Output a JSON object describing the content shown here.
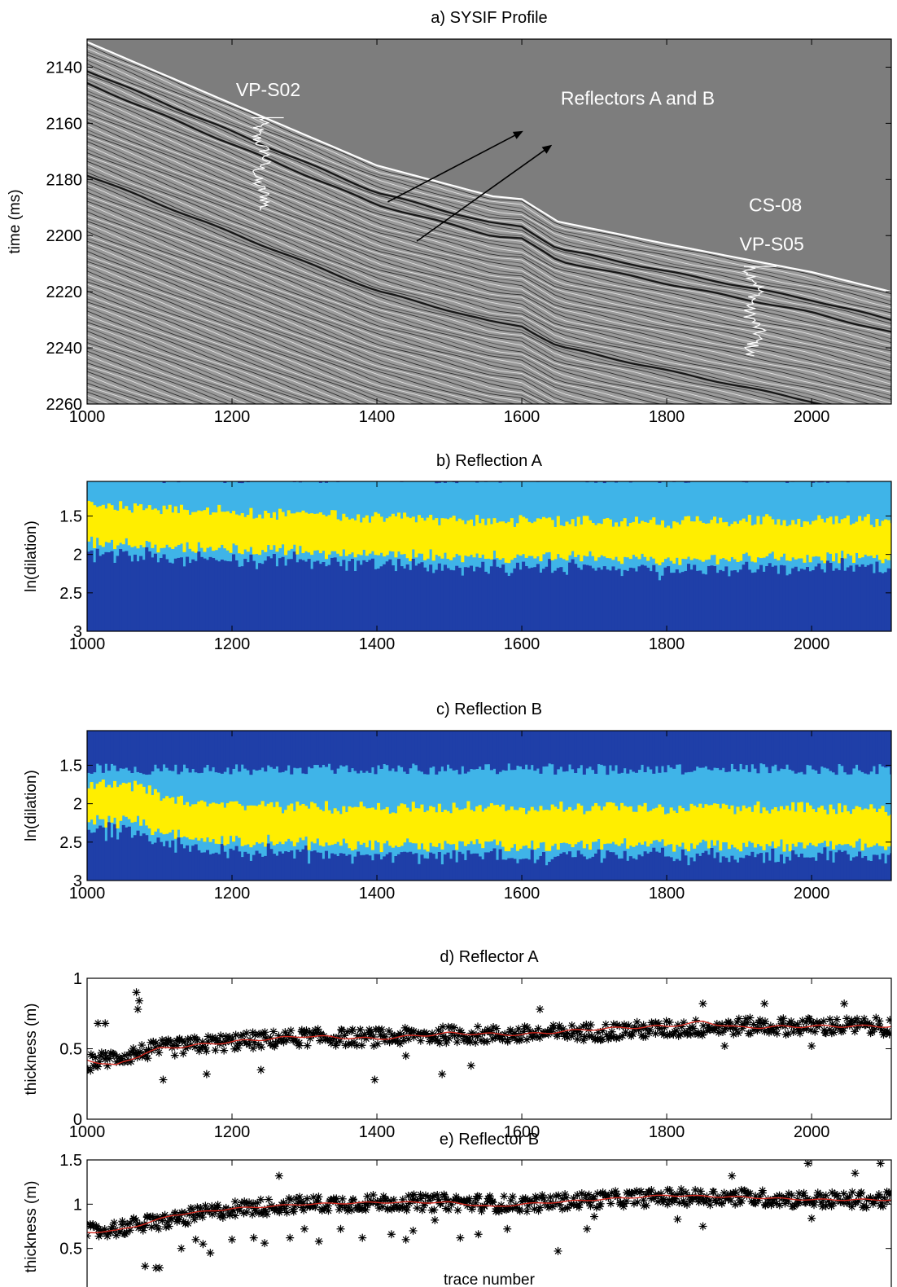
{
  "figure": {
    "xlabel": "trace number"
  },
  "colors": {
    "seismic_background": "#7d7d7d",
    "heat_low": "#1f3fa8",
    "heat_mid": "#3fb4e8",
    "heat_high": "#ffee00",
    "scatter_marker": "#000000",
    "smooth_line": "#d2281e",
    "well_log": "#ffffff"
  },
  "chart_data": [
    {
      "id": "a",
      "type": "heatmap",
      "title": "a) SYSIF Profile",
      "xlabel": "",
      "ylabel": "time (ms)",
      "xlim": [
        1000,
        2110
      ],
      "ylim": [
        2130,
        2260
      ],
      "y_reversed": true,
      "xticks": [
        1000,
        1200,
        1400,
        1600,
        1800,
        2000
      ],
      "yticks": [
        2140,
        2160,
        2180,
        2200,
        2220,
        2240,
        2260
      ],
      "seafloor": {
        "x": [
          1000,
          1200,
          1400,
          1560,
          1600,
          1650,
          1800,
          2000,
          2110
        ],
        "y": [
          2131,
          2153,
          2175,
          2186,
          2187,
          2195,
          2203,
          2213,
          2220
        ]
      },
      "annotations": [
        {
          "text": "VP-S02",
          "x": 1250,
          "y": 2148
        },
        {
          "text": "Reflectors A and B",
          "x": 1760,
          "y": 2151
        },
        {
          "text": "CS-08",
          "x": 1950,
          "y": 2189
        },
        {
          "text": "VP-S05",
          "x": 1945,
          "y": 2203
        }
      ],
      "arrows": [
        {
          "from": [
            1415,
            2188
          ],
          "to": [
            1600,
            2163
          ]
        },
        {
          "from": [
            1455,
            2202
          ],
          "to": [
            1640,
            2168
          ]
        }
      ],
      "well_logs": [
        {
          "name": "VP-S02",
          "x": 1240,
          "y_range": [
            2158,
            2191
          ]
        },
        {
          "name": "VP-S05",
          "x": 1920,
          "y_range": [
            2211,
            2243
          ]
        }
      ]
    },
    {
      "id": "b",
      "type": "heatmap",
      "title": "b) Reflection A",
      "xlabel": "",
      "ylabel": "ln(dilation)",
      "xlim": [
        1000,
        2110
      ],
      "ylim": [
        1.05,
        3
      ],
      "y_reversed": true,
      "xticks": [
        1000,
        1200,
        1400,
        1600,
        1800,
        2000
      ],
      "yticks": [
        1.5,
        2,
        2.5,
        3
      ],
      "ridge": {
        "x": [
          1000,
          1100,
          1200,
          1400,
          1600,
          1800,
          2000,
          2110
        ],
        "y": [
          1.6,
          1.65,
          1.7,
          1.75,
          1.8,
          1.82,
          1.8,
          1.8
        ]
      }
    },
    {
      "id": "c",
      "type": "heatmap",
      "title": "c) Reflection B",
      "xlabel": "",
      "ylabel": "ln(dilation)",
      "xlim": [
        1000,
        2110
      ],
      "ylim": [
        1.05,
        3
      ],
      "y_reversed": true,
      "xticks": [
        1000,
        1200,
        1400,
        1600,
        1800,
        2000
      ],
      "yticks": [
        1.5,
        2,
        2.5,
        3
      ],
      "ridge": {
        "x": [
          1000,
          1070,
          1100,
          1200,
          1400,
          1600,
          1800,
          2000,
          2110
        ],
        "y": [
          2.0,
          2.0,
          2.15,
          2.25,
          2.3,
          2.3,
          2.3,
          2.3,
          2.3
        ]
      }
    },
    {
      "id": "d",
      "type": "scatter",
      "title": "d) Reflector A",
      "xlabel": "",
      "ylabel": "thickness (m)",
      "xlim": [
        1000,
        2110
      ],
      "ylim": [
        0,
        1
      ],
      "xticks": [
        1000,
        1200,
        1400,
        1600,
        1800,
        2000
      ],
      "yticks": [
        0,
        0.5,
        1
      ],
      "series": [
        {
          "role": "smoothed",
          "x": [
            1000,
            1040,
            1080,
            1100,
            1200,
            1300,
            1400,
            1500,
            1600,
            1700,
            1800,
            1850,
            1900,
            2000,
            2110
          ],
          "y": [
            0.42,
            0.38,
            0.47,
            0.5,
            0.55,
            0.59,
            0.57,
            0.61,
            0.6,
            0.64,
            0.66,
            0.69,
            0.65,
            0.66,
            0.66
          ]
        },
        {
          "role": "markers",
          "band": [
            0.4,
            0.5,
            0.55,
            0.58,
            0.58,
            0.6,
            0.6,
            0.62,
            0.64,
            0.66,
            0.66,
            0.66
          ],
          "band_x": [
            1000,
            1100,
            1200,
            1300,
            1400,
            1500,
            1600,
            1700,
            1800,
            1900,
            2000,
            2110
          ],
          "spread": 0.06
        },
        {
          "role": "outliers",
          "x": [
            1015,
            1025,
            1068,
            1072,
            1070,
            1105,
            1165,
            1240,
            1397,
            1490,
            1530,
            1625,
            1850,
            1935,
            2045,
            1880,
            2000,
            1440
          ],
          "y": [
            0.68,
            0.68,
            0.9,
            0.84,
            0.78,
            0.28,
            0.32,
            0.35,
            0.28,
            0.32,
            0.38,
            0.78,
            0.82,
            0.82,
            0.82,
            0.52,
            0.52,
            0.45
          ]
        }
      ]
    },
    {
      "id": "e",
      "type": "scatter",
      "title": "e) Reflector B",
      "xlabel": "trace number",
      "ylabel": "thickness (m)",
      "xlim": [
        1000,
        2110
      ],
      "ylim": [
        0,
        1.5
      ],
      "xticks": [
        1000,
        1200,
        1400,
        1600,
        1800,
        2000
      ],
      "yticks": [
        0,
        0.5,
        1,
        1.5
      ],
      "series": [
        {
          "role": "smoothed",
          "x": [
            1000,
            1040,
            1080,
            1120,
            1200,
            1300,
            1400,
            1500,
            1560,
            1600,
            1700,
            1800,
            1900,
            2000,
            2110
          ],
          "y": [
            0.68,
            0.7,
            0.78,
            0.88,
            0.95,
            1.0,
            1.02,
            1.02,
            0.97,
            1.0,
            1.05,
            1.1,
            1.08,
            1.05,
            1.05
          ]
        },
        {
          "role": "markers",
          "band": [
            0.68,
            0.8,
            0.95,
            1.0,
            1.02,
            1.02,
            1.0,
            1.05,
            1.08,
            1.08,
            1.05,
            1.05
          ],
          "band_x": [
            1000,
            1100,
            1200,
            1300,
            1400,
            1500,
            1600,
            1700,
            1800,
            1900,
            2000,
            2110
          ],
          "spread": 0.09
        },
        {
          "role": "outliers",
          "x": [
            1080,
            1095,
            1100,
            1150,
            1170,
            1200,
            1245,
            1280,
            1265,
            1320,
            1350,
            1380,
            1420,
            1440,
            1480,
            1515,
            1540,
            1580,
            1650,
            1690,
            1815,
            1850,
            1890,
            1995,
            2060,
            2095,
            2000,
            1700,
            1450,
            1300,
            1230,
            1160,
            1130
          ],
          "y": [
            0.3,
            0.28,
            0.28,
            0.6,
            0.45,
            0.6,
            0.56,
            0.62,
            1.32,
            0.58,
            0.72,
            0.62,
            0.66,
            0.6,
            0.82,
            0.62,
            0.66,
            0.72,
            0.47,
            0.72,
            0.83,
            0.75,
            1.32,
            1.46,
            1.35,
            1.46,
            0.84,
            0.86,
            0.7,
            0.72,
            0.62,
            0.55,
            0.5
          ]
        }
      ]
    }
  ]
}
